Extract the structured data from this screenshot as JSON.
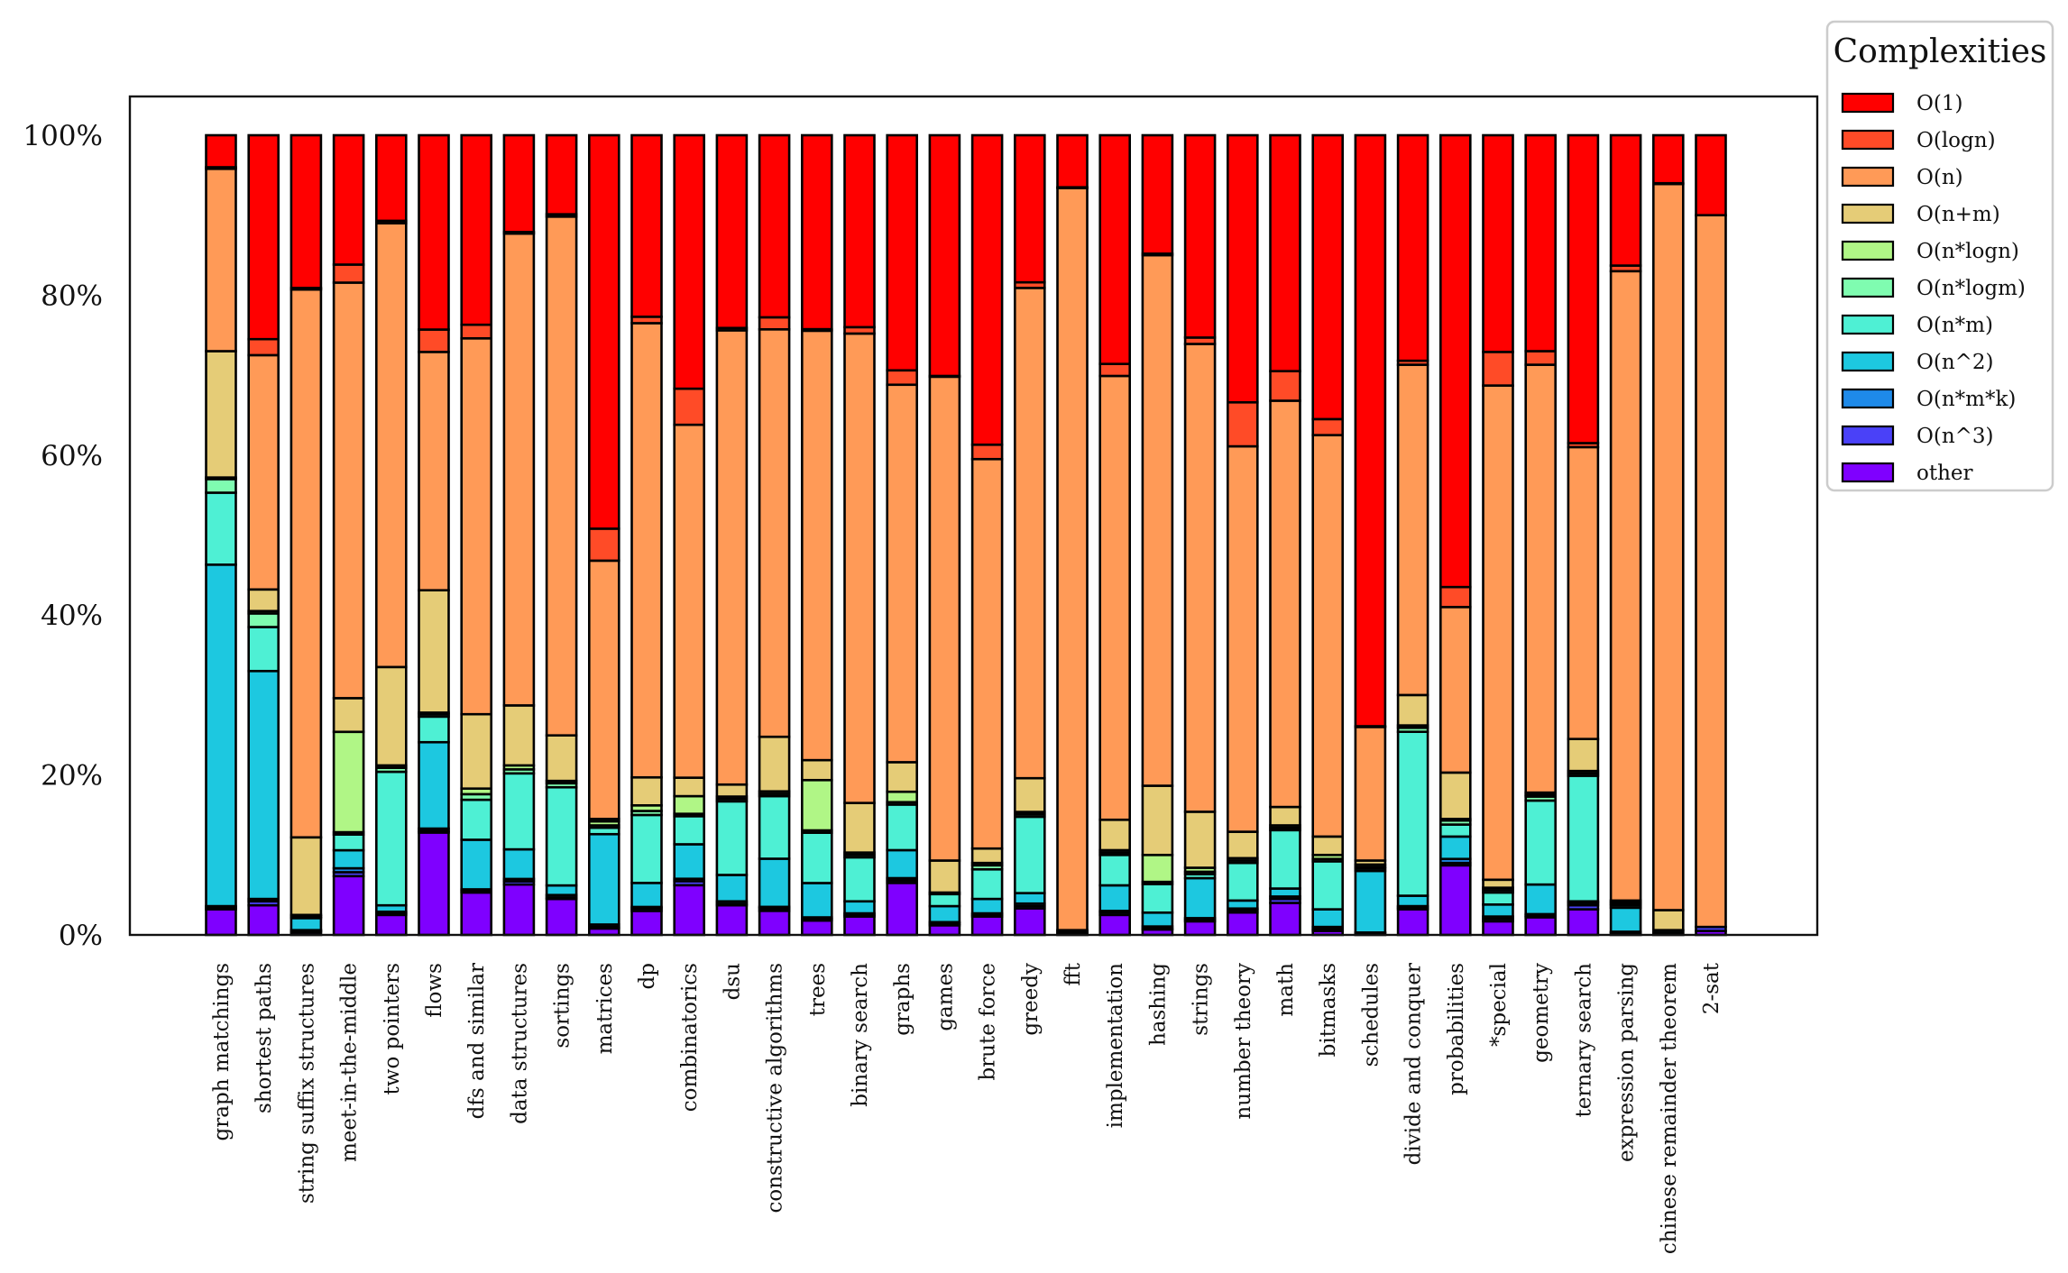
{
  "chart_data": {
    "type": "bar",
    "stacked": true,
    "percent": true,
    "title": "",
    "xlabel": "",
    "ylabel": "",
    "ylim": [
      0,
      100
    ],
    "yticks": [
      "0%",
      "20%",
      "40%",
      "60%",
      "80%",
      "100%"
    ],
    "grid": false,
    "legend": {
      "title": "Complexities",
      "placement": "outside-top-right"
    },
    "categories": [
      "graph matchings",
      "shortest paths",
      "string suffix structures",
      "meet-in-the-middle",
      "two pointers",
      "flows",
      "dfs and similar",
      "data structures",
      "sortings",
      "matrices",
      "dp",
      "combinatorics",
      "dsu",
      "constructive algorithms",
      "trees",
      "binary search",
      "graphs",
      "games",
      "brute force",
      "greedy",
      "fft",
      "implementation",
      "hashing",
      "strings",
      "number theory",
      "math",
      "bitmasks",
      "schedules",
      "divide and conquer",
      "probabilities",
      "*special",
      "geometry",
      "ternary search",
      "expression parsing",
      "chinese remainder theorem",
      "2-sat"
    ],
    "series": [
      {
        "name": "other",
        "color": "#7f00ff",
        "values": [
          3.2,
          3.7,
          0.3,
          7.5,
          2.5,
          12.8,
          5.3,
          6.3,
          4.5,
          0.8,
          3.0,
          6.2,
          3.7,
          3.0,
          1.8,
          2.3,
          6.5,
          1.2,
          2.3,
          3.3,
          0.2,
          2.5,
          0.7,
          1.7,
          2.8,
          4.0,
          0.5,
          0.2,
          3.2,
          8.7,
          1.7,
          2.2,
          3.2,
          0.2,
          0.2,
          0.5
        ]
      },
      {
        "name": "O(n^3)",
        "color": "#4a41f8",
        "values": [
          0.2,
          0.5,
          0.2,
          0.5,
          0.2,
          0.2,
          0.2,
          0.4,
          0.2,
          0.2,
          0.3,
          0.5,
          0.2,
          0.3,
          0.2,
          0.2,
          0.3,
          0.2,
          0.2,
          0.3,
          0.1,
          0.3,
          0.1,
          0.2,
          0.3,
          0.5,
          0.2,
          0.1,
          0.2,
          0.3,
          0.3,
          0.2,
          0.5,
          0.1,
          0.0,
          0.5
        ]
      },
      {
        "name": "O(n*m*k)",
        "color": "#1e8ae9",
        "values": [
          0.2,
          0.3,
          0.1,
          0.5,
          0.2,
          0.3,
          0.2,
          0.3,
          0.3,
          0.3,
          0.2,
          0.3,
          0.3,
          0.2,
          0.2,
          0.2,
          0.3,
          0.2,
          0.2,
          0.3,
          0.0,
          0.2,
          0.3,
          0.2,
          0.2,
          0.3,
          0.3,
          0.0,
          0.2,
          0.5,
          0.3,
          0.2,
          0.3,
          0.1,
          0.0,
          0.0
        ]
      },
      {
        "name": "O(n^2)",
        "color": "#1dc8e0",
        "values": [
          42.7,
          28.5,
          1.5,
          2.3,
          0.8,
          10.8,
          6.2,
          3.7,
          1.2,
          11.3,
          3.0,
          4.3,
          3.3,
          6.0,
          4.3,
          1.5,
          3.5,
          2.0,
          1.8,
          1.3,
          0.0,
          3.2,
          1.8,
          5.0,
          1.0,
          1.0,
          2.2,
          7.7,
          1.3,
          2.8,
          1.5,
          3.7,
          0.2,
          3.0,
          0.0,
          0.0
        ]
      },
      {
        "name": "O(n*m)",
        "color": "#4ef0d4",
        "values": [
          9.0,
          5.5,
          0.2,
          2.0,
          16.7,
          3.2,
          5.0,
          9.5,
          12.3,
          0.8,
          8.5,
          3.5,
          9.2,
          7.8,
          6.3,
          5.5,
          5.7,
          1.5,
          3.7,
          9.5,
          0.2,
          3.8,
          3.7,
          0.5,
          4.7,
          7.3,
          6.0,
          0.3,
          20.5,
          1.5,
          1.5,
          10.5,
          15.7,
          0.3,
          0.3,
          0.0
        ]
      },
      {
        "name": "O(n*logm)",
        "color": "#7ffcb0",
        "values": [
          1.7,
          1.7,
          0.2,
          0.3,
          0.5,
          0.3,
          0.7,
          0.5,
          0.5,
          0.3,
          0.5,
          0.3,
          0.3,
          0.3,
          0.3,
          0.3,
          0.3,
          0.2,
          0.5,
          0.3,
          0.1,
          0.3,
          0.3,
          0.3,
          0.3,
          0.3,
          0.3,
          0.2,
          0.5,
          0.5,
          0.3,
          0.5,
          0.3,
          0.2,
          0.1,
          0.0
        ]
      },
      {
        "name": "O(n*logn)",
        "color": "#b0f686",
        "values": [
          0.2,
          0.3,
          0.0,
          12.8,
          0.3,
          0.2,
          0.7,
          0.5,
          0.3,
          0.5,
          0.7,
          2.2,
          0.3,
          0.3,
          6.3,
          0.3,
          1.3,
          0.0,
          0.3,
          0.3,
          0.0,
          0.3,
          3.5,
          0.5,
          0.3,
          0.3,
          0.5,
          0.3,
          0.3,
          0.2,
          0.3,
          0.2,
          0.3,
          0.2,
          0.0,
          0.0
        ]
      },
      {
        "name": "O(n+m)",
        "color": "#e5cc77",
        "values": [
          15.8,
          2.7,
          9.7,
          4.3,
          12.3,
          15.3,
          9.3,
          7.5,
          5.7,
          0.3,
          3.5,
          2.3,
          1.5,
          6.8,
          2.5,
          6.2,
          3.7,
          4.0,
          1.8,
          4.2,
          0.0,
          3.8,
          9.0,
          7.0,
          3.3,
          2.3,
          2.3,
          0.5,
          3.8,
          5.8,
          1.0,
          0.3,
          4.0,
          0.2,
          2.5,
          0.0
        ]
      },
      {
        "name": "O(n)",
        "color": "#ff9a57",
        "values": [
          22.8,
          29.3,
          68.5,
          53.0,
          55.5,
          29.8,
          47.0,
          59.0,
          65.0,
          32.3,
          56.8,
          44.0,
          56.8,
          50.8,
          53.8,
          58.7,
          47.2,
          60.5,
          48.7,
          61.0,
          92.7,
          55.5,
          69.0,
          58.5,
          48.2,
          50.8,
          50.2,
          16.7,
          41.3,
          20.7,
          61.8,
          53.5,
          36.5,
          78.7,
          90.8,
          89.0
        ]
      },
      {
        "name": "O(logn)",
        "color": "#ff4b27",
        "values": [
          0.2,
          2.0,
          0.2,
          2.3,
          0.3,
          2.8,
          1.7,
          0.2,
          0.3,
          4.0,
          0.8,
          4.5,
          0.3,
          1.5,
          0.2,
          0.8,
          1.8,
          0.1,
          1.8,
          0.7,
          0.1,
          1.5,
          0.2,
          0.8,
          5.5,
          3.7,
          2.0,
          0.1,
          0.5,
          2.5,
          4.2,
          1.7,
          0.5,
          0.7,
          0.1,
          0.0
        ]
      },
      {
        "name": "O(1)",
        "color": "#ff0000",
        "values": [
          4.0,
          25.5,
          19.1,
          16.5,
          10.7,
          24.3,
          23.7,
          12.1,
          9.9,
          49.2,
          22.7,
          31.6,
          24.1,
          22.7,
          24.3,
          24.0,
          29.4,
          30.1,
          38.7,
          18.3,
          6.5,
          28.6,
          15.4,
          25.3,
          33.4,
          29.5,
          35.5,
          73.9,
          28.2,
          56.5,
          27.1,
          27.0,
          38.5,
          16.3,
          6.0,
          10.0
        ]
      }
    ]
  }
}
